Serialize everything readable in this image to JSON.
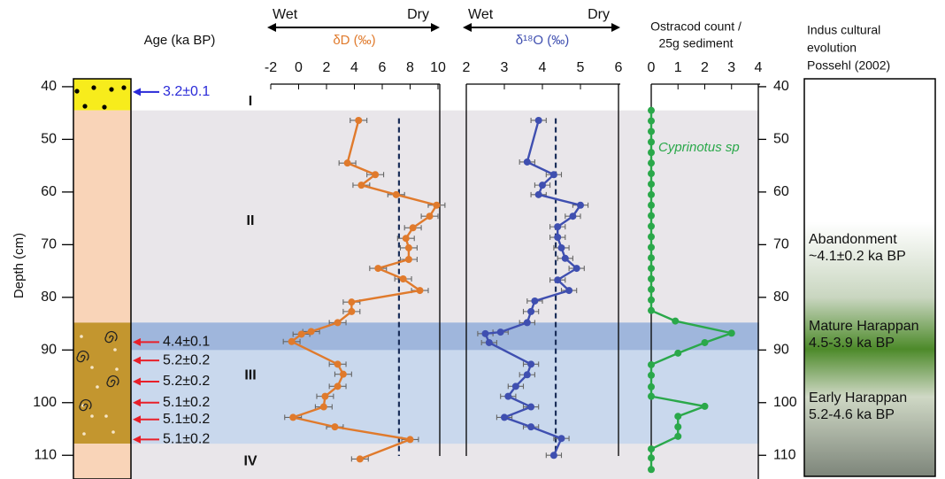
{
  "chart_data": [
    {
      "type": "column",
      "title": "Age (ka BP)",
      "ylabel": "Depth (cm)",
      "ylim": [
        38.5,
        114.5
      ],
      "yticks": [
        40,
        50,
        60,
        70,
        80,
        90,
        100,
        110
      ],
      "layers": [
        {
          "top": 38.5,
          "bottom": 44.5,
          "color": "#f7ec1c"
        },
        {
          "top": 44.5,
          "bottom": 84.8,
          "color": "#f9d4b8"
        },
        {
          "top": 84.8,
          "bottom": 107.8,
          "color": "#c3962f"
        },
        {
          "top": 107.8,
          "bottom": 114.5,
          "color": "#f9d4b8"
        }
      ],
      "zones": [
        {
          "top": 44.5,
          "bottom": 114.5,
          "color": "#e9e6ea"
        },
        {
          "top": 84.8,
          "bottom": 107.8,
          "color": "#c9d8ed"
        },
        {
          "top": 84.8,
          "bottom": 90.0,
          "color": "#9fb6dc"
        }
      ],
      "zone_labels": [
        {
          "depth": 42.8,
          "label": "I"
        },
        {
          "depth": 65.5,
          "label": "II"
        },
        {
          "depth": 94.9,
          "label": "III"
        },
        {
          "depth": 111.2,
          "label": "IV"
        }
      ],
      "ages": [
        {
          "depth": 41.0,
          "label": "3.2±0.1",
          "color": "#2a2ad8"
        },
        {
          "depth": 88.5,
          "label": "4.4±0.1",
          "color": "#e8202a"
        },
        {
          "depth": 92.0,
          "label": "5.2±0.2",
          "color": "#e8202a"
        },
        {
          "depth": 96.0,
          "label": "5.2±0.2",
          "color": "#e8202a"
        },
        {
          "depth": 100.0,
          "label": "5.1±0.2",
          "color": "#e8202a"
        },
        {
          "depth": 103.2,
          "label": "5.1±0.2",
          "color": "#e8202a"
        },
        {
          "depth": 107.0,
          "label": "5.1±0.2",
          "color": "#e8202a"
        }
      ]
    },
    {
      "type": "line",
      "xlabel": "δD (‰)",
      "wet": "Wet",
      "dry": "Dry",
      "color": "#e07a2c",
      "xlim": [
        -2,
        10
      ],
      "xticks": [
        -2,
        0,
        2,
        4,
        6,
        8,
        10
      ],
      "error": 0.6,
      "dashed_line": 7.2,
      "y": [
        46.4,
        54.5,
        56.7,
        58.7,
        60.5,
        62.5,
        64.6,
        66.8,
        68.8,
        70.6,
        72.8,
        74.5,
        76.5,
        78.7,
        80.9,
        82.7,
        84.8,
        86.5,
        87.0,
        88.4,
        92.7,
        94.6,
        96.9,
        98.8,
        100.8,
        102.8,
        104.6,
        107.0,
        110.7
      ],
      "values": [
        4.3,
        3.5,
        5.5,
        4.5,
        7.0,
        9.9,
        9.4,
        8.2,
        7.7,
        7.9,
        7.9,
        5.7,
        7.5,
        8.7,
        3.8,
        3.8,
        2.8,
        0.9,
        0.2,
        -0.5,
        2.8,
        3.2,
        2.8,
        1.9,
        1.8,
        -0.4,
        2.6,
        8.0,
        4.4
      ]
    },
    {
      "type": "line",
      "xlabel": "δ¹⁸O (‰)",
      "wet": "Wet",
      "dry": "Dry",
      "color": "#3f4fb0",
      "xlim": [
        2,
        6
      ],
      "xticks": [
        2,
        3,
        4,
        5,
        6
      ],
      "error": 0.2,
      "dashed_line": 4.35,
      "y": [
        46.4,
        54.3,
        56.7,
        58.7,
        60.5,
        62.5,
        64.6,
        66.6,
        68.6,
        70.6,
        72.6,
        74.5,
        76.7,
        78.7,
        80.7,
        82.7,
        84.8,
        86.6,
        86.9,
        88.6,
        92.7,
        94.7,
        96.9,
        98.8,
        100.8,
        102.8,
        104.6,
        106.8,
        110.0
      ],
      "values": [
        3.9,
        3.6,
        4.3,
        4.0,
        3.9,
        5.0,
        4.8,
        4.4,
        4.4,
        4.5,
        4.6,
        4.9,
        4.4,
        4.7,
        3.8,
        3.7,
        3.6,
        2.9,
        2.5,
        2.6,
        3.7,
        3.6,
        3.3,
        3.1,
        3.7,
        3.0,
        3.7,
        4.5,
        4.3
      ]
    },
    {
      "type": "line",
      "xlabel": [
        "Ostracod count /",
        "25g sediment"
      ],
      "annotation": "Cyprinotus sp",
      "color": "#2aa84a",
      "xlim": [
        0,
        4
      ],
      "xticks": [
        0,
        1,
        2,
        3,
        4
      ],
      "y": [
        44.5,
        46.5,
        48.5,
        50.5,
        52.5,
        54.5,
        56.5,
        58.5,
        60.5,
        62.5,
        64.5,
        66.5,
        68.5,
        70.5,
        72.5,
        74.5,
        76.5,
        78.5,
        80.5,
        82.5,
        84.5,
        86.8,
        88.6,
        90.6,
        92.8,
        94.8,
        97.0,
        98.8,
        100.7,
        102.6,
        104.6,
        106.4,
        108.8,
        110.5,
        112.7
      ],
      "values": [
        0,
        0,
        0,
        0,
        0,
        0,
        0,
        0,
        0,
        0,
        0,
        0,
        0,
        0,
        0,
        0,
        0,
        0,
        0,
        0,
        0.9,
        3,
        2,
        1,
        0,
        0,
        0,
        0,
        2,
        1,
        1,
        1,
        0,
        0,
        0
      ]
    },
    {
      "type": "timeline",
      "title": [
        "Indus cultural",
        "evolution",
        "Possehl (2002)"
      ],
      "periods": [
        {
          "name": "Abandonment",
          "range": "~4.1±0.2 ka BP"
        },
        {
          "name": "Mature Harappan",
          "range": "4.5-3.9 ka BP"
        },
        {
          "name": "Early Harappan",
          "range": "5.2-4.6 ka BP"
        }
      ]
    }
  ]
}
